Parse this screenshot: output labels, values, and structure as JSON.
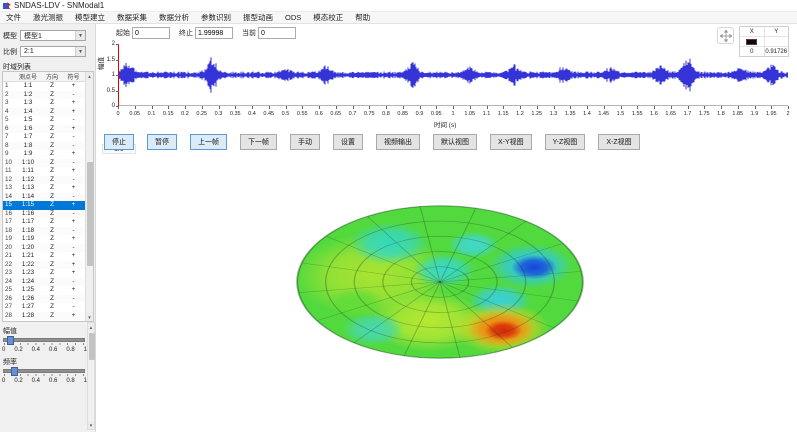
{
  "window": {
    "title": "SNDAS-LDV - SNModal1"
  },
  "menu": {
    "items": [
      "文件",
      "激光测振",
      "模型建立",
      "数据采集",
      "数据分析",
      "参数识别",
      "振型动画",
      "ODS",
      "模态校正",
      "帮助"
    ]
  },
  "sidebar": {
    "model_label": "模型",
    "model_value": "模型1",
    "ratio_label": "比例",
    "ratio_value": "2:1",
    "list_title": "时域列表",
    "table": {
      "headers": [
        "",
        "测点号",
        "方向",
        "符号"
      ],
      "selected_index": 14,
      "rows": [
        {
          "n": "1",
          "point": "1:1",
          "dir": "Z",
          "sign": "+"
        },
        {
          "n": "2",
          "point": "1:2",
          "dir": "Z",
          "sign": "-"
        },
        {
          "n": "3",
          "point": "1:3",
          "dir": "Z",
          "sign": "+"
        },
        {
          "n": "4",
          "point": "1:4",
          "dir": "Z",
          "sign": "+"
        },
        {
          "n": "5",
          "point": "1:5",
          "dir": "Z",
          "sign": "-"
        },
        {
          "n": "6",
          "point": "1:6",
          "dir": "Z",
          "sign": "+"
        },
        {
          "n": "7",
          "point": "1:7",
          "dir": "Z",
          "sign": "-"
        },
        {
          "n": "8",
          "point": "1:8",
          "dir": "Z",
          "sign": "-"
        },
        {
          "n": "9",
          "point": "1:9",
          "dir": "Z",
          "sign": "+"
        },
        {
          "n": "10",
          "point": "1:10",
          "dir": "Z",
          "sign": "-"
        },
        {
          "n": "11",
          "point": "1:11",
          "dir": "Z",
          "sign": "+"
        },
        {
          "n": "12",
          "point": "1:12",
          "dir": "Z",
          "sign": "-"
        },
        {
          "n": "13",
          "point": "1:13",
          "dir": "Z",
          "sign": "+"
        },
        {
          "n": "14",
          "point": "1:14",
          "dir": "Z",
          "sign": "-"
        },
        {
          "n": "15",
          "point": "1:15",
          "dir": "Z",
          "sign": "+"
        },
        {
          "n": "16",
          "point": "1:16",
          "dir": "Z",
          "sign": "-"
        },
        {
          "n": "17",
          "point": "1:17",
          "dir": "Z",
          "sign": "+"
        },
        {
          "n": "18",
          "point": "1:18",
          "dir": "Z",
          "sign": "-"
        },
        {
          "n": "19",
          "point": "1:19",
          "dir": "Z",
          "sign": "+"
        },
        {
          "n": "20",
          "point": "1:20",
          "dir": "Z",
          "sign": "-"
        },
        {
          "n": "21",
          "point": "1:21",
          "dir": "Z",
          "sign": "+"
        },
        {
          "n": "22",
          "point": "1:22",
          "dir": "Z",
          "sign": "+"
        },
        {
          "n": "23",
          "point": "1:23",
          "dir": "Z",
          "sign": "+"
        },
        {
          "n": "24",
          "point": "1:24",
          "dir": "Z",
          "sign": "-"
        },
        {
          "n": "25",
          "point": "1:25",
          "dir": "Z",
          "sign": "+"
        },
        {
          "n": "26",
          "point": "1:26",
          "dir": "Z",
          "sign": "-"
        },
        {
          "n": "27",
          "point": "1:27",
          "dir": "Z",
          "sign": "-"
        },
        {
          "n": "28",
          "point": "1:28",
          "dir": "Z",
          "sign": "+"
        }
      ]
    },
    "amplitude_slider": {
      "label": "幅值",
      "ticks": [
        "0",
        "0.2",
        "0.4",
        "0.6",
        "0.8",
        "1"
      ],
      "value": 0.05
    },
    "frequency_slider": {
      "label": "频率",
      "ticks": [
        "0",
        "0.2",
        "0.4",
        "0.6",
        "0.8",
        "1"
      ],
      "value": 0.1
    }
  },
  "controls": {
    "start_label": "起始",
    "start_value": "0",
    "stop_label": "终止",
    "stop_value": "1.99998",
    "current_label": "当前",
    "current_value": "0"
  },
  "cursor_panel": {
    "col_x": "X",
    "col_y": "Y",
    "x_value": "0",
    "y_value": "0.91726",
    "swatch_color": "#1a0000"
  },
  "pager": {
    "prev": "◄",
    "label": "1/6",
    "next": "►"
  },
  "toolbar": {
    "buttons": [
      {
        "label": "停止",
        "active": true
      },
      {
        "label": "暂停",
        "active": true
      },
      {
        "label": "上一帧",
        "active": true
      },
      {
        "label": "下一帧",
        "active": false
      },
      {
        "label": "手动",
        "active": false
      },
      {
        "label": "设置",
        "active": false
      },
      {
        "label": "视频输出",
        "active": false
      },
      {
        "label": "默认视图",
        "active": false
      },
      {
        "label": "X-Y视图",
        "active": false
      },
      {
        "label": "Y-Z视图",
        "active": false
      },
      {
        "label": "X-Z视图",
        "active": false
      }
    ]
  },
  "chart_data": [
    {
      "type": "line",
      "title": "",
      "xlabel": "时间 (s)",
      "ylabel": "幅值",
      "xlim": [
        0,
        2
      ],
      "ylim": [
        0,
        2
      ],
      "x_tick_step": 0.05,
      "y_ticks": [
        0,
        0.5,
        1,
        1.5,
        2
      ],
      "baseline": 1,
      "noise_amplitude": 0.09,
      "burst_width": 0.013,
      "line_color": "#0000cd",
      "cursor_x": 0,
      "cursor_color": "#dd0000",
      "grid": false,
      "bursts": [
        {
          "t": 0.03,
          "amp": 0.4
        },
        {
          "t": 0.28,
          "amp": 0.52
        },
        {
          "t": 0.5,
          "amp": 0.16
        },
        {
          "t": 0.62,
          "amp": 0.26
        },
        {
          "t": 0.88,
          "amp": 0.34
        },
        {
          "t": 1.05,
          "amp": 0.2
        },
        {
          "t": 1.18,
          "amp": 0.3
        },
        {
          "t": 1.33,
          "amp": 0.2
        },
        {
          "t": 1.47,
          "amp": 0.16
        },
        {
          "t": 1.62,
          "amp": 0.26
        },
        {
          "t": 1.7,
          "amp": 0.52
        },
        {
          "t": 1.86,
          "amp": 0.18
        },
        {
          "t": 1.95,
          "amp": 0.3
        }
      ]
    },
    {
      "type": "surface-disk",
      "base_color": "#52d93e",
      "edge_color": "rgba(20,90,20,0.45)",
      "mesh_color": "rgba(30,60,30,0.32)",
      "tilt_deg": -8,
      "radial_lines": 16,
      "rings": 5,
      "colormap": [
        "#1646dc",
        "#30c8e0",
        "#52d93e",
        "#b8e832",
        "#f08010",
        "#d62808"
      ],
      "blobs": [
        {
          "x": -0.45,
          "y": -0.15,
          "r": 0.55,
          "color": "#a8e432"
        },
        {
          "x": -0.15,
          "y": 0.5,
          "r": 0.4,
          "color": "#b8e832"
        },
        {
          "x": -0.28,
          "y": -0.55,
          "r": 0.28,
          "color": "#35d8c0"
        },
        {
          "x": 0.05,
          "y": -0.15,
          "r": 0.22,
          "color": "#38d8c8"
        },
        {
          "x": -0.62,
          "y": 0.18,
          "r": 0.2,
          "color": "#60dc38"
        },
        {
          "x": 0.3,
          "y": -0.45,
          "r": 0.18,
          "color": "#40d8d0"
        },
        {
          "x": 0.66,
          "y": -0.12,
          "r": 0.3,
          "color": "#30c8e0"
        },
        {
          "x": 0.68,
          "y": -0.1,
          "r": 0.16,
          "color": "#1646dc"
        },
        {
          "x": 0.38,
          "y": 0.3,
          "r": 0.22,
          "color": "#38d0d8"
        },
        {
          "x": -0.55,
          "y": 0.55,
          "r": 0.22,
          "color": "#48d8b0"
        },
        {
          "x": 0.34,
          "y": 0.66,
          "r": 0.34,
          "color": "#e8d020"
        },
        {
          "x": 0.34,
          "y": 0.67,
          "r": 0.24,
          "color": "#f08010"
        },
        {
          "x": 0.35,
          "y": 0.69,
          "r": 0.13,
          "color": "#d62808"
        }
      ]
    }
  ],
  "colors": {
    "accent": "#0078d7",
    "selection": "#0078d7",
    "content_bg": "#ffffff",
    "panel_bg": "#f0f0f0"
  }
}
